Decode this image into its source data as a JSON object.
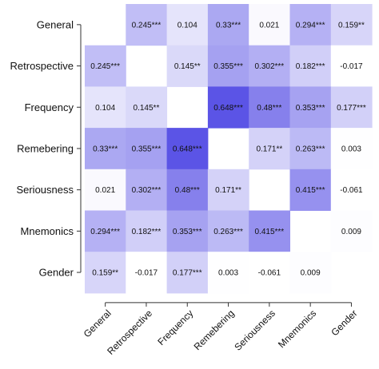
{
  "chart_data": {
    "type": "heatmap",
    "title": "",
    "xlabel": "",
    "ylabel": "",
    "rows": [
      "General",
      "Retrospective",
      "Frequency",
      "Remebering",
      "Seriousness",
      "Mnemonics",
      "Gender"
    ],
    "columns": [
      "General",
      "Retrospective",
      "Frequency",
      "Remebering",
      "Seriousness",
      "Mnemonics",
      "Gender"
    ],
    "values": [
      [
        null,
        0.245,
        0.104,
        0.33,
        0.021,
        0.294,
        0.159
      ],
      [
        0.245,
        null,
        0.145,
        0.355,
        0.302,
        0.182,
        -0.017
      ],
      [
        0.104,
        0.145,
        null,
        0.648,
        0.48,
        0.353,
        0.177
      ],
      [
        0.33,
        0.355,
        0.648,
        null,
        0.171,
        0.263,
        0.003
      ],
      [
        0.021,
        0.302,
        0.48,
        0.171,
        null,
        0.415,
        -0.061
      ],
      [
        0.294,
        0.182,
        0.353,
        0.263,
        0.415,
        null,
        0.009
      ],
      [
        0.159,
        -0.017,
        0.177,
        0.003,
        -0.061,
        0.009,
        null
      ]
    ],
    "labels": [
      [
        "",
        "0.245***",
        "0.104",
        "0.33***",
        "0.021",
        "0.294***",
        "0.159**"
      ],
      [
        "0.245***",
        "",
        "0.145**",
        "0.355***",
        "0.302***",
        "0.182***",
        "-0.017"
      ],
      [
        "0.104",
        "0.145**",
        "",
        "0.648***",
        "0.48***",
        "0.353***",
        "0.177***"
      ],
      [
        "0.33***",
        "0.355***",
        "0.648***",
        "",
        "0.171**",
        "0.263***",
        "0.003"
      ],
      [
        "0.021",
        "0.302***",
        "0.48***",
        "0.171**",
        "",
        "0.415***",
        "-0.061"
      ],
      [
        "0.294***",
        "0.182***",
        "0.353***",
        "0.263***",
        "0.415***",
        "",
        "0.009"
      ],
      [
        "0.159**",
        "-0.017",
        "0.177***",
        "0.003",
        "-0.061",
        "0.009",
        ""
      ]
    ],
    "color_low": "#ffffff",
    "color_high": "#5b54e6",
    "color_max_value": 0.648
  }
}
